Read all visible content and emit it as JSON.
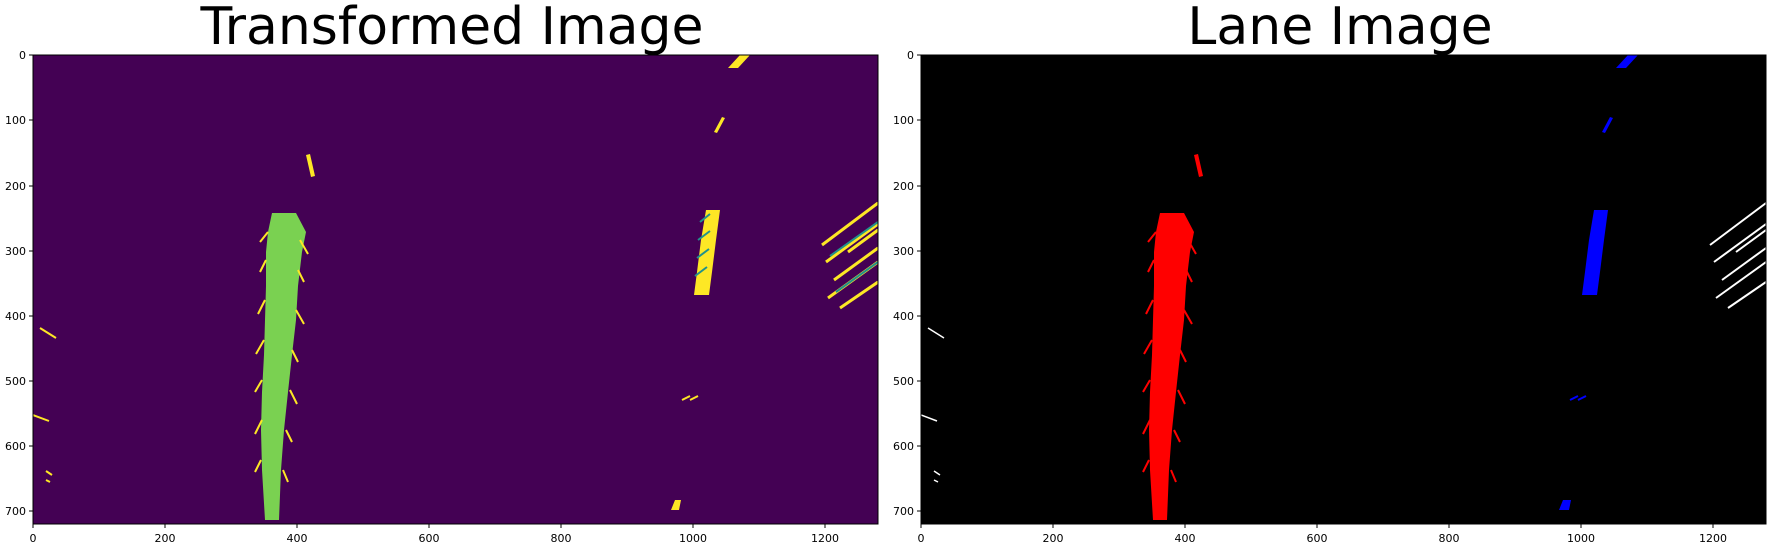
{
  "figure": {
    "panels": [
      {
        "id": "transformed",
        "title": "Transformed Image",
        "colormap": "viridis",
        "background_color": "#440154",
        "x_ticks": [
          "0",
          "200",
          "400",
          "600",
          "800",
          "1000",
          "1200"
        ],
        "y_ticks": [
          "0",
          "100",
          "200",
          "300",
          "400",
          "500",
          "600",
          "700"
        ]
      },
      {
        "id": "lane",
        "title": "Lane Image",
        "background_color": "#000000",
        "left_lane_color": "#ff0000",
        "right_lane_color": "#0000ff",
        "other_pixels_color": "#ffffff",
        "x_ticks": [
          "0",
          "200",
          "400",
          "600",
          "800",
          "1000",
          "1200"
        ],
        "y_ticks": [
          "0",
          "100",
          "200",
          "300",
          "400",
          "500",
          "600",
          "700"
        ]
      }
    ],
    "image_extent": {
      "x": [
        0,
        1280
      ],
      "y": [
        0,
        720
      ]
    }
  }
}
